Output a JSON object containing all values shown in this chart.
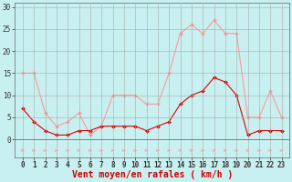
{
  "x": [
    0,
    1,
    2,
    3,
    4,
    5,
    6,
    7,
    8,
    9,
    10,
    11,
    12,
    13,
    14,
    15,
    16,
    17,
    18,
    19,
    20,
    21,
    22,
    23
  ],
  "wind_avg": [
    7,
    4,
    2,
    1,
    1,
    2,
    2,
    3,
    3,
    3,
    3,
    2,
    3,
    4,
    8,
    10,
    11,
    14,
    13,
    10,
    1,
    2,
    2,
    2
  ],
  "wind_gust": [
    15,
    15,
    6,
    3,
    4,
    6,
    1,
    3,
    10,
    10,
    10,
    8,
    8,
    15,
    24,
    26,
    24,
    27,
    24,
    24,
    5,
    5,
    11,
    5
  ],
  "avg_color": "#dd0000",
  "gust_color": "#ff9999",
  "bg_color": "#c8f0f0",
  "grid_color": "#aaaaaa",
  "xlabel": "Vent moyen/en rafales ( km/h )",
  "ylim": [
    0,
    30
  ],
  "yticks": [
    0,
    5,
    10,
    15,
    20,
    25,
    30
  ],
  "xticks": [
    0,
    1,
    2,
    3,
    4,
    5,
    6,
    7,
    8,
    9,
    10,
    11,
    12,
    13,
    14,
    15,
    16,
    17,
    18,
    19,
    20,
    21,
    22,
    23
  ],
  "tick_fontsize": 5.5,
  "xlabel_fontsize": 7
}
